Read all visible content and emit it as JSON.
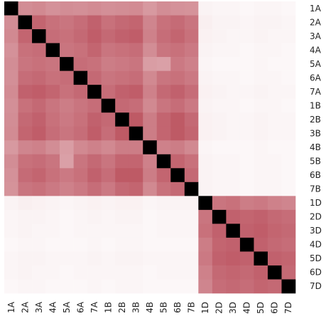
{
  "chart_data": {
    "type": "heatmap",
    "title": "",
    "xlabel": "",
    "ylabel": "",
    "labels": [
      "1A",
      "2A",
      "3A",
      "4A",
      "5A",
      "6A",
      "7A",
      "1B",
      "2B",
      "3B",
      "4B",
      "5B",
      "6B",
      "7B",
      "1D",
      "2D",
      "3D",
      "4D",
      "5D",
      "6D",
      "7D"
    ],
    "diagonal_color": "#000000",
    "low_color": "#ffffff",
    "high_color": "#b23a48",
    "values": [
      [
        1.0,
        0.58,
        0.6,
        0.56,
        0.58,
        0.57,
        0.59,
        0.57,
        0.58,
        0.59,
        0.52,
        0.58,
        0.56,
        0.55,
        0.06,
        0.05,
        0.05,
        0.04,
        0.05,
        0.05,
        0.04
      ],
      [
        0.58,
        1.0,
        0.78,
        0.72,
        0.7,
        0.74,
        0.8,
        0.72,
        0.76,
        0.78,
        0.62,
        0.72,
        0.75,
        0.7,
        0.08,
        0.06,
        0.06,
        0.05,
        0.06,
        0.06,
        0.05
      ],
      [
        0.6,
        0.78,
        1.0,
        0.74,
        0.72,
        0.76,
        0.82,
        0.76,
        0.8,
        0.82,
        0.64,
        0.74,
        0.78,
        0.72,
        0.07,
        0.06,
        0.05,
        0.05,
        0.06,
        0.05,
        0.05
      ],
      [
        0.56,
        0.72,
        0.74,
        1.0,
        0.7,
        0.72,
        0.78,
        0.7,
        0.72,
        0.74,
        0.58,
        0.7,
        0.72,
        0.68,
        0.06,
        0.05,
        0.05,
        0.04,
        0.05,
        0.05,
        0.04
      ],
      [
        0.58,
        0.7,
        0.72,
        0.7,
        1.0,
        0.74,
        0.72,
        0.66,
        0.68,
        0.7,
        0.5,
        0.48,
        0.68,
        0.64,
        0.05,
        0.04,
        0.04,
        0.04,
        0.05,
        0.04,
        0.04
      ],
      [
        0.57,
        0.74,
        0.76,
        0.72,
        0.74,
        1.0,
        0.76,
        0.7,
        0.72,
        0.74,
        0.6,
        0.7,
        0.72,
        0.68,
        0.06,
        0.05,
        0.05,
        0.04,
        0.05,
        0.05,
        0.04
      ],
      [
        0.59,
        0.8,
        0.82,
        0.78,
        0.72,
        0.76,
        1.0,
        0.74,
        0.8,
        0.82,
        0.64,
        0.76,
        0.8,
        0.74,
        0.07,
        0.06,
        0.05,
        0.05,
        0.06,
        0.05,
        0.05
      ],
      [
        0.57,
        0.72,
        0.76,
        0.7,
        0.66,
        0.7,
        0.74,
        1.0,
        0.76,
        0.74,
        0.6,
        0.7,
        0.74,
        0.68,
        0.06,
        0.05,
        0.05,
        0.04,
        0.05,
        0.05,
        0.04
      ],
      [
        0.58,
        0.76,
        0.8,
        0.72,
        0.68,
        0.72,
        0.8,
        0.76,
        1.0,
        0.84,
        0.66,
        0.78,
        0.84,
        0.76,
        0.07,
        0.06,
        0.05,
        0.05,
        0.06,
        0.05,
        0.05
      ],
      [
        0.59,
        0.78,
        0.82,
        0.74,
        0.7,
        0.74,
        0.82,
        0.74,
        0.84,
        1.0,
        0.66,
        0.78,
        0.84,
        0.78,
        0.07,
        0.06,
        0.05,
        0.05,
        0.06,
        0.05,
        0.05
      ],
      [
        0.52,
        0.62,
        0.64,
        0.58,
        0.5,
        0.6,
        0.64,
        0.6,
        0.66,
        0.66,
        1.0,
        0.64,
        0.66,
        0.6,
        0.05,
        0.04,
        0.04,
        0.04,
        0.05,
        0.04,
        0.04
      ],
      [
        0.58,
        0.72,
        0.74,
        0.7,
        0.48,
        0.7,
        0.76,
        0.7,
        0.78,
        0.78,
        0.64,
        1.0,
        0.78,
        0.72,
        0.06,
        0.05,
        0.05,
        0.04,
        0.05,
        0.05,
        0.04
      ],
      [
        0.56,
        0.75,
        0.78,
        0.72,
        0.68,
        0.72,
        0.8,
        0.74,
        0.84,
        0.84,
        0.66,
        0.78,
        1.0,
        0.76,
        0.06,
        0.05,
        0.05,
        0.04,
        0.05,
        0.05,
        0.04
      ],
      [
        0.55,
        0.7,
        0.72,
        0.68,
        0.64,
        0.68,
        0.74,
        0.68,
        0.76,
        0.78,
        0.6,
        0.72,
        0.76,
        1.0,
        0.06,
        0.05,
        0.05,
        0.04,
        0.05,
        0.05,
        0.04
      ],
      [
        0.06,
        0.08,
        0.07,
        0.06,
        0.05,
        0.06,
        0.07,
        0.06,
        0.07,
        0.07,
        0.05,
        0.06,
        0.06,
        0.06,
        1.0,
        0.7,
        0.72,
        0.66,
        0.68,
        0.64,
        0.62
      ],
      [
        0.05,
        0.06,
        0.06,
        0.05,
        0.04,
        0.05,
        0.06,
        0.05,
        0.06,
        0.06,
        0.04,
        0.05,
        0.05,
        0.05,
        0.7,
        1.0,
        0.8,
        0.78,
        0.8,
        0.76,
        0.74
      ],
      [
        0.05,
        0.06,
        0.05,
        0.05,
        0.04,
        0.05,
        0.05,
        0.05,
        0.05,
        0.05,
        0.04,
        0.05,
        0.05,
        0.05,
        0.72,
        0.8,
        1.0,
        0.8,
        0.82,
        0.78,
        0.76
      ],
      [
        0.04,
        0.05,
        0.05,
        0.04,
        0.04,
        0.04,
        0.05,
        0.04,
        0.05,
        0.05,
        0.04,
        0.04,
        0.04,
        0.04,
        0.66,
        0.78,
        0.8,
        1.0,
        0.8,
        0.76,
        0.74
      ],
      [
        0.05,
        0.06,
        0.06,
        0.05,
        0.05,
        0.05,
        0.06,
        0.05,
        0.06,
        0.06,
        0.05,
        0.05,
        0.05,
        0.05,
        0.68,
        0.8,
        0.82,
        0.8,
        1.0,
        0.8,
        0.78
      ],
      [
        0.05,
        0.06,
        0.05,
        0.05,
        0.04,
        0.05,
        0.05,
        0.05,
        0.05,
        0.05,
        0.04,
        0.05,
        0.05,
        0.05,
        0.64,
        0.76,
        0.78,
        0.76,
        0.8,
        1.0,
        0.76
      ],
      [
        0.04,
        0.05,
        0.05,
        0.04,
        0.04,
        0.04,
        0.05,
        0.04,
        0.05,
        0.05,
        0.04,
        0.04,
        0.04,
        0.04,
        0.62,
        0.74,
        0.76,
        0.74,
        0.78,
        0.76,
        1.0
      ]
    ],
    "legend": "none",
    "grid": false
  }
}
